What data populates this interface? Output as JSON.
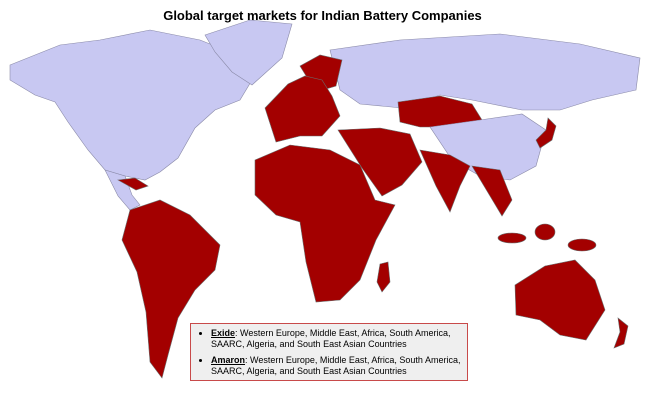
{
  "title": "Global target markets for Indian Battery Companies",
  "legend": [
    {
      "name": "Exide",
      "text": ": Western Europe, Middle East, Africa, South America, SAARC, Algeria, and South East Asian Countries"
    },
    {
      "name": "Amaron",
      "text": ": Western Europe, Middle East, Africa, South America, SAARC, Algeria, and South East Asian Countries"
    }
  ]
}
